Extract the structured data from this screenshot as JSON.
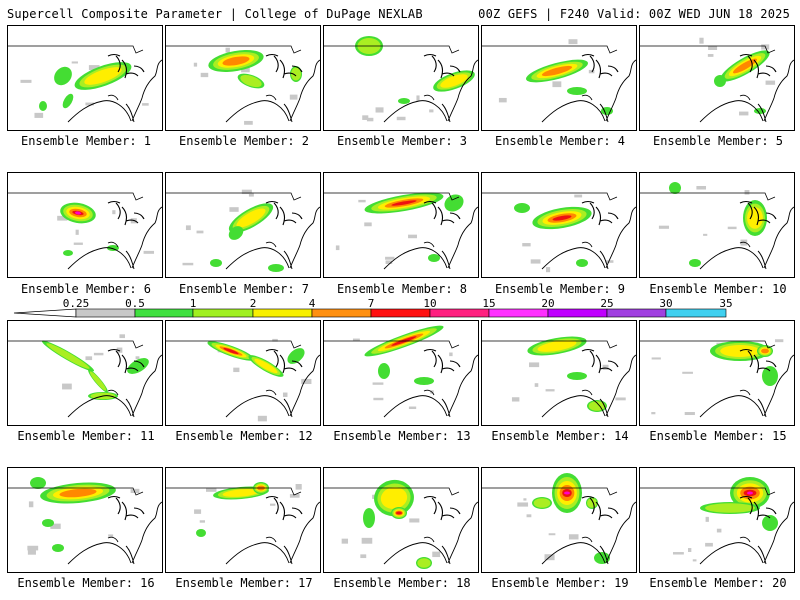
{
  "header": {
    "left": "Supercell Composite Parameter | College of DuPage NEXLAB",
    "right": "00Z GEFS | F240 Valid: 00Z WED JUN 18 2025"
  },
  "panel_label_prefix": "Ensemble Member: ",
  "members": [
    1,
    2,
    3,
    4,
    5,
    6,
    7,
    8,
    9,
    10,
    11,
    12,
    13,
    14,
    15,
    16,
    17,
    18,
    19,
    20
  ],
  "colorbar": {
    "ticks": [
      "0.25",
      "0.5",
      "1",
      "2",
      "4",
      "7",
      "10",
      "15",
      "20",
      "25",
      "30",
      "35"
    ],
    "colors": [
      "#c8c8c8",
      "#40e040",
      "#a0f020",
      "#f8f000",
      "#ff9010",
      "#ff1010",
      "#ff2080",
      "#ff30ff",
      "#c000ff",
      "#a040e0",
      "#40d0f0"
    ]
  },
  "field_colors": {
    "light": "#c8c8c8",
    "green": "#44dd33",
    "yellowgreen": "#aaee22",
    "yellow": "#ffee00",
    "orange": "#ff8800",
    "red": "#ee1111",
    "magenta": "#ff00cc"
  }
}
